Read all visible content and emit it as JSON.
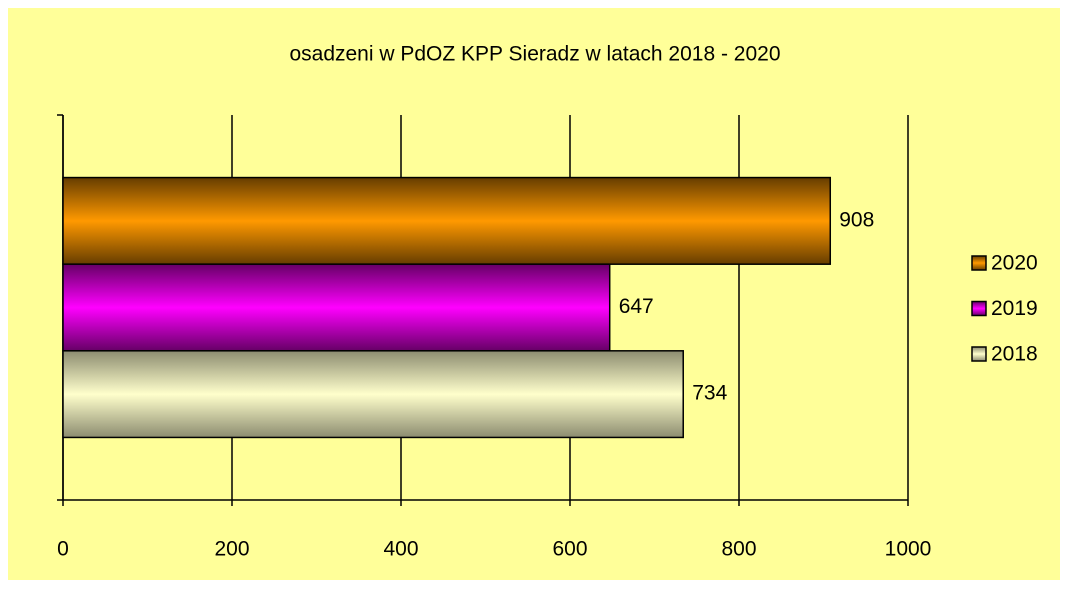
{
  "chart_data": {
    "type": "bar",
    "orientation": "horizontal",
    "title": "osadzeni w PdOZ KPP Sieradz w latach 2018 - 2020",
    "categories": [
      null
    ],
    "series": [
      {
        "name": "2020",
        "color": "#ff9900",
        "values": [
          908
        ]
      },
      {
        "name": "2019",
        "color": "#ff00ff",
        "values": [
          647
        ]
      },
      {
        "name": "2018",
        "color": "#ffffcc",
        "values": [
          734
        ]
      }
    ],
    "xlim": [
      0,
      1000
    ],
    "xticks": [
      0,
      200,
      400,
      600,
      800,
      1000
    ],
    "grid": true,
    "legend": "right",
    "background": "#ffff99"
  }
}
